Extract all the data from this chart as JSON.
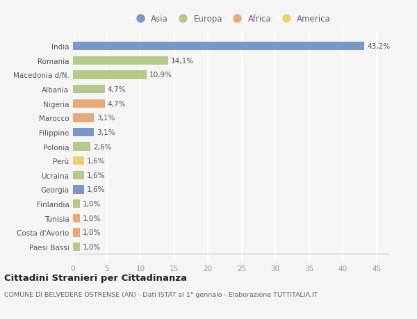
{
  "countries": [
    "India",
    "Romania",
    "Macedonia d/N.",
    "Albania",
    "Nigeria",
    "Marocco",
    "Filippine",
    "Polonia",
    "Perù",
    "Ucraina",
    "Georgia",
    "Finlandia",
    "Tunisia",
    "Costa d'Avorio",
    "Paesi Bassi"
  ],
  "values": [
    43.2,
    14.1,
    10.9,
    4.7,
    4.7,
    3.1,
    3.1,
    2.6,
    1.6,
    1.6,
    1.6,
    1.0,
    1.0,
    1.0,
    1.0
  ],
  "labels": [
    "43,2%",
    "14,1%",
    "10,9%",
    "4,7%",
    "4,7%",
    "3,1%",
    "3,1%",
    "2,6%",
    "1,6%",
    "1,6%",
    "1,6%",
    "1,0%",
    "1,0%",
    "1,0%",
    "1,0%"
  ],
  "continents": [
    "Asia",
    "Europa",
    "Europa",
    "Europa",
    "Africa",
    "Africa",
    "Asia",
    "Europa",
    "America",
    "Europa",
    "Asia",
    "Europa",
    "Africa",
    "Africa",
    "Europa"
  ],
  "colors": {
    "Asia": "#7b96c8",
    "Europa": "#b5c98a",
    "Africa": "#e8a878",
    "America": "#f0cf6e"
  },
  "legend_order": [
    "Asia",
    "Europa",
    "Africa",
    "America"
  ],
  "xlim": [
    0,
    47
  ],
  "xticks": [
    0,
    5,
    10,
    15,
    20,
    25,
    30,
    35,
    40,
    45
  ],
  "title": "Cittadini Stranieri per Cittadinanza",
  "subtitle": "COMUNE DI BELVEDERE OSTRENSE (AN) - Dati ISTAT al 1° gennaio - Elaborazione TUTTITALIA.IT",
  "bg_color": "#f5f5f5",
  "bar_height": 0.6,
  "label_fontsize": 7.5,
  "tick_fontsize": 7.5,
  "legend_fontsize": 8.5
}
